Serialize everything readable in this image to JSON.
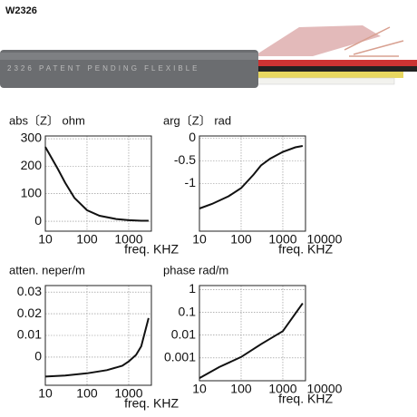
{
  "header": "W2326",
  "cable_text": "2326 PATENT PENDING FLEXIBLE",
  "chart_data": [
    {
      "type": "line",
      "title": "abs〔Z〕 ohm",
      "x_label": "freq. KHZ",
      "log_x": true,
      "log_y": false,
      "grid": true,
      "color": "#111111",
      "x": [
        10,
        20,
        30,
        50,
        100,
        200,
        500,
        1000,
        2000,
        3000
      ],
      "values": [
        270,
        190,
        140,
        85,
        40,
        20,
        8,
        4,
        2,
        2
      ],
      "xlim": [
        10,
        3500
      ],
      "xticks": [
        10,
        100,
        1000
      ],
      "ylim": [
        -36,
        310
      ],
      "yticks": [
        0,
        100,
        200,
        300
      ]
    },
    {
      "type": "line",
      "title": "arg〔Z〕 rad",
      "x_label": "freq. KHZ",
      "log_x": true,
      "log_y": false,
      "grid": true,
      "color": "#111111",
      "x": [
        10,
        20,
        50,
        100,
        200,
        300,
        500,
        1000,
        2000,
        3000
      ],
      "values": [
        -1.55,
        -1.45,
        -1.28,
        -1.1,
        -0.8,
        -0.6,
        -0.45,
        -0.3,
        -0.2,
        -0.17
      ],
      "xlim": [
        10,
        3500
      ],
      "xticks": [
        10,
        100,
        1000,
        10000
      ],
      "ylim": [
        -2.05,
        0.05
      ],
      "yticks": [
        0,
        -0.5,
        -1
      ]
    },
    {
      "type": "line",
      "title": "atten. neper/m",
      "x_label": "freq. KHZ",
      "log_x": true,
      "log_y": false,
      "grid": true,
      "color": "#111111",
      "x": [
        10,
        30,
        100,
        300,
        700,
        1000,
        1500,
        2000,
        3000
      ],
      "values": [
        -0.009,
        -0.0085,
        -0.0075,
        -0.006,
        -0.004,
        -0.002,
        0.001,
        0.005,
        0.018
      ],
      "xlim": [
        10,
        3500
      ],
      "xticks": [
        10,
        100,
        1000
      ],
      "ylim": [
        -0.013,
        0.033
      ],
      "yticks": [
        0,
        0.01,
        0.02,
        0.03
      ]
    },
    {
      "type": "line",
      "title": "phase rad/m",
      "x_label": "freq. KHZ",
      "log_x": true,
      "log_y": true,
      "grid": true,
      "color": "#111111",
      "x": [
        10,
        30,
        100,
        300,
        1000,
        3000
      ],
      "values": [
        0.00013,
        0.0004,
        0.0011,
        0.004,
        0.015,
        0.25
      ],
      "xlim": [
        10,
        3500
      ],
      "xticks": [
        10,
        100,
        1000,
        10000
      ],
      "ylim": [
        0.0001,
        1.5
      ],
      "yticks": [
        1,
        0.1,
        0.01,
        0.001
      ]
    }
  ]
}
